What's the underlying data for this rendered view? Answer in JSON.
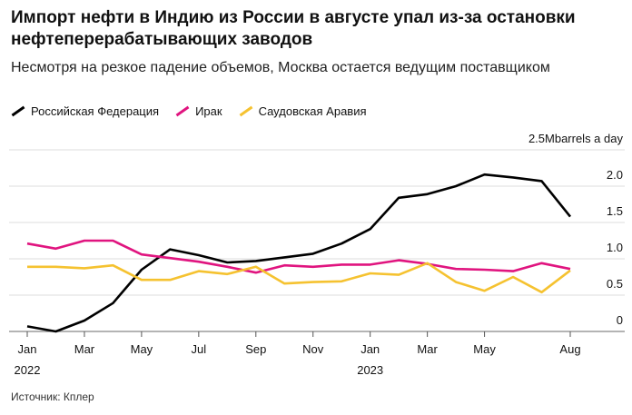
{
  "title": "Импорт нефти в Индию из России в августе упал из-за остановки нефтеперерабатывающих заводов",
  "subtitle": "Несмотря на резкое падение объемов, Москва остается ведущим поставщиком",
  "source": "Источник: Кплер",
  "chart_data": {
    "type": "line",
    "unit_label": "Mbarrels a day",
    "ylim": [
      0,
      2.5
    ],
    "yticks": [
      "0",
      "0.5",
      "1.0",
      "1.5",
      "2.0",
      "2.5"
    ],
    "xticks": [
      {
        "month": 0,
        "label": "Jan",
        "year": "2022"
      },
      {
        "month": 2,
        "label": "Mar"
      },
      {
        "month": 4,
        "label": "May"
      },
      {
        "month": 6,
        "label": "Jul"
      },
      {
        "month": 8,
        "label": "Sep"
      },
      {
        "month": 10,
        "label": "Nov"
      },
      {
        "month": 12,
        "label": "Jan",
        "year": "2023"
      },
      {
        "month": 14,
        "label": "Mar"
      },
      {
        "month": 16,
        "label": "May"
      },
      {
        "month": 19,
        "label": "Aug"
      }
    ],
    "x": [
      "2022-01",
      "2022-02",
      "2022-03",
      "2022-04",
      "2022-05",
      "2022-06",
      "2022-07",
      "2022-08",
      "2022-09",
      "2022-10",
      "2022-11",
      "2022-12",
      "2023-01",
      "2023-02",
      "2023-03",
      "2023-04",
      "2023-05",
      "2023-06",
      "2023-07",
      "2023-08"
    ],
    "grid": true,
    "legend_position": "top-left",
    "series": [
      {
        "name": "Российская Федерация",
        "color": "#000000",
        "values": [
          0.07,
          0.0,
          0.15,
          0.39,
          0.85,
          1.13,
          1.05,
          0.95,
          0.97,
          1.02,
          1.07,
          1.21,
          1.41,
          1.84,
          1.89,
          2.0,
          2.16,
          2.12,
          2.07,
          1.58
        ]
      },
      {
        "name": "Ирак",
        "color": "#e0147f",
        "values": [
          1.21,
          1.14,
          1.25,
          1.25,
          1.06,
          1.01,
          0.96,
          0.89,
          0.81,
          0.91,
          0.89,
          0.92,
          0.92,
          0.98,
          0.93,
          0.86,
          0.85,
          0.83,
          0.94,
          0.86
        ]
      },
      {
        "name": "Саудовская Аравия",
        "color": "#f5c230",
        "values": [
          0.89,
          0.89,
          0.87,
          0.91,
          0.71,
          0.71,
          0.83,
          0.79,
          0.89,
          0.66,
          0.68,
          0.69,
          0.8,
          0.78,
          0.94,
          0.68,
          0.56,
          0.75,
          0.54,
          0.84
        ]
      }
    ]
  }
}
